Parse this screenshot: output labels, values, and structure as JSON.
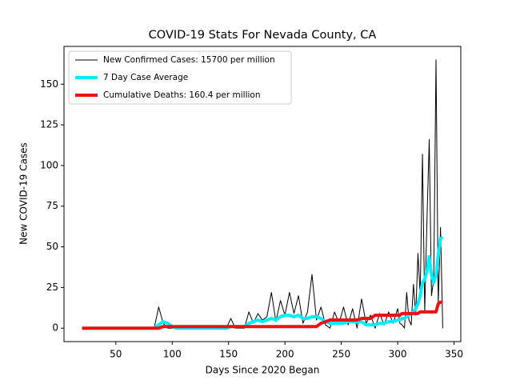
{
  "chart_data": {
    "type": "line",
    "title": "COVID-19 Stats For Nevada County, CA",
    "xlabel": "Days Since 2020 Began",
    "ylabel": "New COVID-19 Cases",
    "x": [
      20,
      24,
      28,
      32,
      36,
      40,
      44,
      48,
      52,
      56,
      60,
      64,
      68,
      72,
      76,
      80,
      84,
      88,
      92,
      96,
      100,
      104,
      108,
      112,
      116,
      120,
      124,
      128,
      132,
      136,
      140,
      144,
      148,
      152,
      156,
      160,
      164,
      168,
      172,
      176,
      180,
      184,
      188,
      192,
      196,
      200,
      204,
      208,
      212,
      216,
      220,
      224,
      228,
      232,
      236,
      240,
      244,
      248,
      252,
      256,
      260,
      264,
      268,
      272,
      276,
      280,
      284,
      288,
      292,
      296,
      300,
      302,
      304,
      306,
      308,
      310,
      312,
      314,
      316,
      318,
      320,
      322,
      324,
      326,
      328,
      330,
      332,
      334,
      336,
      338,
      340
    ],
    "series": [
      {
        "name": "New Confirmed Cases: 15700 per million",
        "color": "#000000",
        "width": 1,
        "values": [
          0,
          0,
          0,
          0,
          0,
          0,
          0,
          0,
          0,
          0,
          0,
          0,
          0,
          0,
          0,
          0,
          0,
          13,
          3,
          0,
          0,
          1,
          0,
          0,
          1,
          0,
          0,
          0,
          0,
          0,
          0,
          0,
          0,
          6,
          0,
          0,
          0,
          10,
          3,
          9,
          5,
          7,
          22,
          4,
          17,
          8,
          22,
          9,
          20,
          3,
          10,
          33,
          5,
          13,
          2,
          0,
          10,
          3,
          13,
          2,
          12,
          0,
          18,
          3,
          8,
          0,
          9,
          2,
          10,
          3,
          12,
          3,
          2,
          0,
          22,
          5,
          2,
          27,
          8,
          46,
          20,
          107,
          10,
          67,
          116,
          20,
          30,
          165,
          15,
          62,
          0
        ]
      },
      {
        "name": "7 Day Case Average",
        "color": "#00eeff",
        "width": 4,
        "values": [
          0,
          0,
          0,
          0,
          0,
          0,
          0,
          0,
          0,
          0,
          0,
          0,
          0,
          0,
          0,
          0,
          0,
          2,
          4,
          3,
          1,
          0,
          0,
          0,
          0,
          0,
          0,
          0,
          0,
          0,
          0,
          0,
          0,
          1,
          1,
          1,
          1,
          3,
          4,
          5,
          4,
          5,
          6,
          5,
          7,
          8,
          8,
          7,
          8,
          6,
          6,
          7,
          7,
          6,
          4,
          3,
          3,
          3,
          3,
          4,
          4,
          4,
          4,
          2,
          2,
          2,
          3,
          3,
          4,
          4,
          5,
          5,
          6,
          6,
          7,
          8,
          9,
          10,
          12,
          15,
          20,
          28,
          30,
          35,
          44,
          33,
          28,
          32,
          45,
          55,
          56
        ]
      },
      {
        "name": "Cumulative Deaths: 160.4 per million",
        "color": "#ee1111",
        "width": 4,
        "values": [
          0,
          0,
          0,
          0,
          0,
          0,
          0,
          0,
          0,
          0,
          0,
          0,
          0,
          0,
          0,
          0,
          0,
          0,
          1,
          1,
          1,
          1,
          1,
          1,
          1,
          1,
          1,
          1,
          1,
          1,
          1,
          1,
          1,
          1,
          1,
          1,
          1,
          1,
          1,
          1,
          1,
          1,
          1,
          1,
          1,
          1,
          1,
          1,
          1,
          1,
          1,
          1,
          1,
          3,
          4,
          5,
          5,
          5,
          5,
          5,
          5,
          5,
          6,
          6,
          6,
          8,
          8,
          8,
          8,
          8,
          8,
          8,
          9,
          9,
          9,
          9,
          9,
          9,
          9,
          9,
          10,
          10,
          10,
          10,
          10,
          10,
          10,
          10,
          15,
          16,
          16
        ]
      }
    ],
    "xlim": [
      4,
      356
    ],
    "ylim": [
      -8.25,
      173.25
    ],
    "xticks": [
      50,
      100,
      150,
      200,
      250,
      300,
      350
    ],
    "yticks": [
      0,
      25,
      50,
      75,
      100,
      125,
      150
    ],
    "legend": "upper left"
  }
}
